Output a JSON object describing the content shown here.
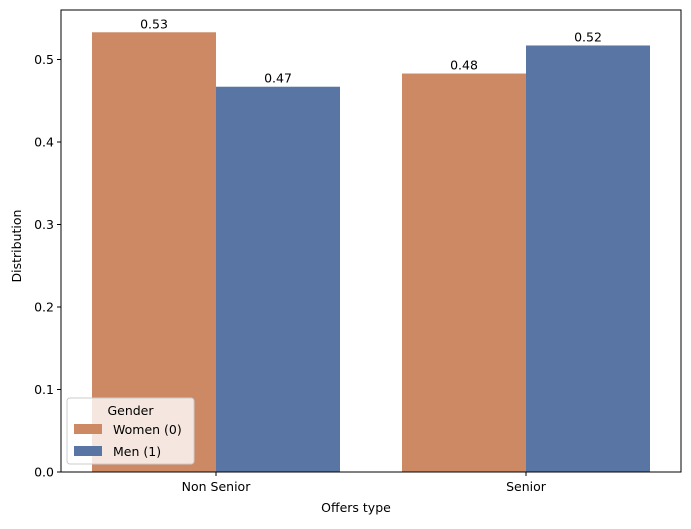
{
  "chart_data": {
    "type": "bar",
    "title": "",
    "xlabel": "Offers type",
    "ylabel": "Distribution",
    "categories": [
      "Non Senior",
      "Senior"
    ],
    "ylim": [
      0,
      0.56
    ],
    "yticks": [
      0.0,
      0.1,
      0.2,
      0.3,
      0.4,
      0.5
    ],
    "ytick_labels": [
      "0.0",
      "0.1",
      "0.2",
      "0.3",
      "0.4",
      "0.5"
    ],
    "grid": false,
    "series": [
      {
        "name": "Women (0)",
        "color": "#cc8963",
        "values": [
          0.533,
          0.483
        ],
        "labels": [
          "0.53",
          "0.48"
        ]
      },
      {
        "name": "Men (1)",
        "color": "#5975a4",
        "values": [
          0.467,
          0.517
        ],
        "labels": [
          "0.47",
          "0.52"
        ]
      }
    ],
    "legend": {
      "title": "Gender",
      "placement": "lower-left"
    }
  }
}
